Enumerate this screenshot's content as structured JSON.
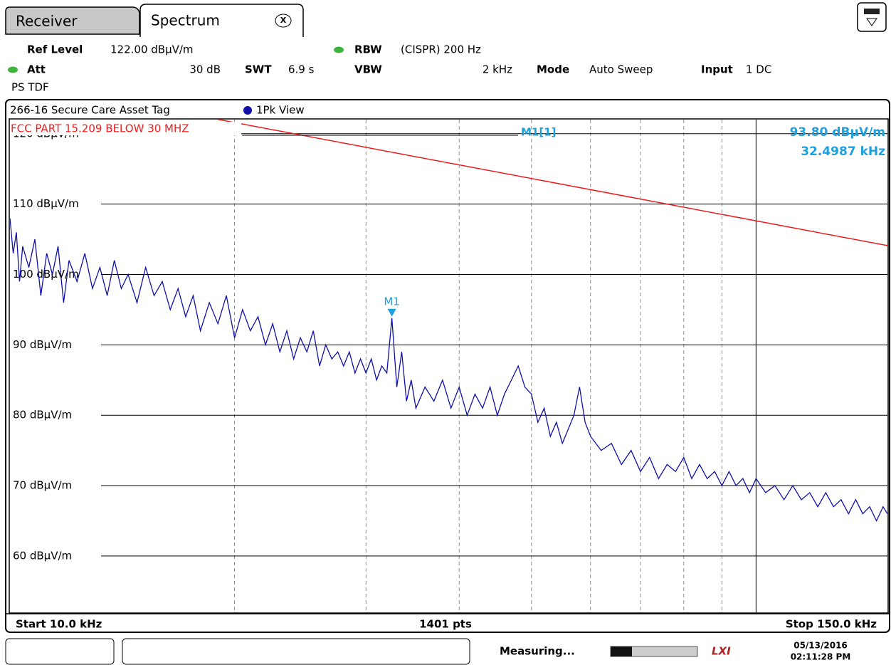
{
  "tabs": {
    "receiver": "Receiver",
    "spectrum": "Spectrum",
    "close": "X"
  },
  "settings": {
    "ref_level_label": "Ref Level",
    "ref_level": "122.00 dBµV/m",
    "rbw_label": "RBW",
    "rbw": "(CISPR) 200 Hz",
    "att_label": "Att",
    "att": "30 dB",
    "swt_label": "SWT",
    "swt": "6.9 s",
    "vbw_label": "VBW",
    "vbw": "2 kHz",
    "mode_label": "Mode",
    "mode": "Auto Sweep",
    "input_label": "Input",
    "input": "1 DC",
    "detector": "PS TDF"
  },
  "chart_data": {
    "type": "line",
    "title": "266-16 Secure Care Asset Tag",
    "trace_label": "1Pk View",
    "log_x": true,
    "xlim": [
      10,
      150
    ],
    "xticks": [
      20,
      30,
      40,
      50,
      60,
      70,
      80,
      90,
      100
    ],
    "ylim": [
      52,
      122
    ],
    "yticks": [
      {
        "value": 120,
        "label": "120 dBµV/m"
      },
      {
        "value": 110,
        "label": "110 dBµV/m"
      },
      {
        "value": 100,
        "label": "100 dBµV/m"
      },
      {
        "value": 90,
        "label": "90 dBµV/m"
      },
      {
        "value": 80,
        "label": "80 dBµV/m"
      },
      {
        "value": 70,
        "label": "70 dBµV/m"
      },
      {
        "value": 60,
        "label": "60 dBµV/m"
      }
    ],
    "grid": true,
    "x": [
      10.0,
      10.1,
      10.2,
      10.3,
      10.4,
      10.6,
      10.8,
      11.0,
      11.2,
      11.4,
      11.6,
      11.8,
      12.0,
      12.3,
      12.6,
      12.9,
      13.2,
      13.5,
      13.8,
      14.1,
      14.4,
      14.8,
      15.2,
      15.6,
      16.0,
      16.4,
      16.8,
      17.2,
      17.6,
      18.0,
      18.5,
      19.0,
      19.5,
      20.0,
      20.5,
      21.0,
      21.5,
      22.0,
      22.5,
      23.0,
      23.5,
      24.0,
      24.5,
      25.0,
      25.5,
      26.0,
      26.5,
      27.0,
      27.5,
      28.0,
      28.5,
      29.0,
      29.5,
      30.0,
      30.5,
      31.0,
      31.5,
      32.0,
      32.5,
      33.0,
      33.5,
      34.0,
      34.5,
      35.0,
      36.0,
      37.0,
      38.0,
      39.0,
      40.0,
      41.0,
      42.0,
      43.0,
      44.0,
      45.0,
      46.0,
      47.0,
      48.0,
      49.0,
      50.0,
      51,
      52,
      53,
      54,
      55,
      56,
      57,
      58,
      59,
      60,
      62,
      64,
      66,
      68,
      70,
      72,
      74,
      76,
      78,
      80,
      82,
      84,
      86,
      88,
      90,
      92,
      94,
      96,
      98,
      100,
      103,
      106,
      109,
      112,
      115,
      118,
      121,
      124,
      127,
      130,
      133,
      136,
      139,
      142,
      145,
      148,
      150
    ],
    "series": [
      {
        "name": "1Pk View",
        "color": "#1010a8",
        "values": [
          108,
          103,
          106,
          99,
          104,
          101,
          105,
          97,
          103,
          100,
          104,
          96,
          102,
          99,
          103,
          98,
          101,
          97,
          102,
          98,
          100,
          96,
          101,
          97,
          99,
          95,
          98,
          94,
          97,
          92,
          96,
          93,
          97,
          91,
          95,
          92,
          94,
          90,
          93,
          89,
          92,
          88,
          91,
          89,
          92,
          87,
          90,
          88,
          89,
          87,
          89,
          86,
          88,
          86,
          88,
          85,
          87,
          86,
          93.8,
          84,
          89,
          82,
          85,
          81,
          84,
          82,
          85,
          81,
          84,
          80,
          83,
          81,
          84,
          80,
          83,
          85,
          87,
          84,
          83,
          79,
          81,
          77,
          79,
          76,
          78,
          80,
          84,
          79,
          77,
          75,
          76,
          73,
          75,
          72,
          74,
          71,
          73,
          72,
          74,
          71,
          73,
          71,
          72,
          70,
          72,
          70,
          71,
          69,
          71,
          69,
          70,
          68,
          70,
          68,
          69,
          67,
          69,
          67,
          68,
          66,
          68,
          66,
          67,
          65,
          67,
          66
        ]
      },
      {
        "name": "FCC PART 15.209 BELOW 30 MHZ",
        "color": "#ee1c1c",
        "x": [
          10,
          150
        ],
        "values": [
          127.6,
          104.1
        ]
      }
    ],
    "marker": {
      "label": "M1",
      "readout": "M1[1]",
      "x": 32.4987,
      "value": 93.8,
      "value_label": "93.80 dBµV/m",
      "x_label": "32.4987 kHz",
      "color": "#1ea0dc"
    },
    "start_label": "Start 10.0 kHz",
    "points_label": "1401 pts",
    "stop_label": "Stop 150.0 kHz"
  },
  "status": {
    "state": "Measuring...",
    "lxi": "LXI",
    "date": "05/13/2016",
    "time": "02:11:28 PM"
  }
}
